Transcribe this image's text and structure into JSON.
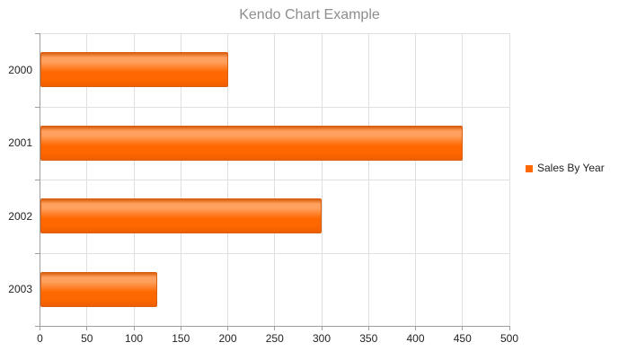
{
  "title": "Kendo Chart Example",
  "legend": {
    "position": "right",
    "items": [
      {
        "label": "Sales By Year",
        "color": "#ff6800"
      }
    ]
  },
  "chart_data": {
    "type": "bar",
    "orientation": "horizontal",
    "title": "Kendo Chart Example",
    "categories": [
      "2000",
      "2001",
      "2002",
      "2003"
    ],
    "series": [
      {
        "name": "Sales By Year",
        "color": "#ff6800",
        "values": [
          200,
          450,
          300,
          125
        ]
      }
    ],
    "xlabel": "",
    "ylabel": "",
    "xlim": [
      0,
      500
    ],
    "xticks": [
      0,
      50,
      100,
      150,
      200,
      250,
      300,
      350,
      400,
      450,
      500
    ],
    "grid": true,
    "legend_position": "right"
  },
  "colors": {
    "bar": "#ff6800",
    "bar_border": "#d95f0e",
    "bar_highlight": "#ffa05e",
    "bar_shade": "#ee5e00",
    "gridline": "#e0e0e0",
    "axis": "#9e9e9e",
    "label": "#232323",
    "title": "#8e8e8e",
    "background": "#ffffff"
  }
}
